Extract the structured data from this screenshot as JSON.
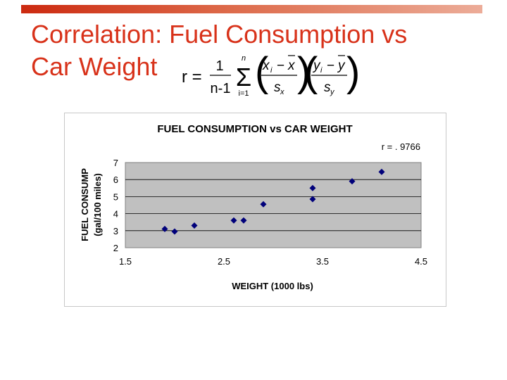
{
  "slide": {
    "title_line1": "Correlation: Fuel Consumption vs",
    "title_line2": "Car Weight",
    "accent_color": "#d8321a"
  },
  "formula": {
    "lhs": "r =",
    "fraction_numerator": "1",
    "fraction_denominator": "n-1",
    "sum_upper": "n",
    "sum_lower": "i=1",
    "x_term": "x",
    "x_subscript": "i",
    "x_mean": "x",
    "x_sd": "s",
    "x_sd_subscript": "x",
    "y_term": "y",
    "y_subscript": "i",
    "y_mean": "y",
    "y_sd": "s",
    "y_sd_subscript": "y",
    "minus": "−"
  },
  "chart_data": {
    "type": "scatter",
    "title": "FUEL CONSUMPTION vs CAR WEIGHT",
    "annotation": "r = . 9766",
    "xlabel": "WEIGHT (1000 lbs)",
    "ylabel_line1": "FUEL CONSUMP",
    "ylabel_line2": "(gal/100 miles)",
    "xlim": [
      1.5,
      4.5
    ],
    "ylim": [
      2,
      7
    ],
    "xticks": [
      "1.5",
      "2.5",
      "3.5",
      "4.5"
    ],
    "yticks": [
      "2",
      "3",
      "4",
      "5",
      "6",
      "7"
    ],
    "grid": true,
    "plot_background": "#c0c0c0",
    "marker_color": "#00007a",
    "points": [
      {
        "x": 1.9,
        "y": 3.1
      },
      {
        "x": 2.0,
        "y": 2.95
      },
      {
        "x": 2.2,
        "y": 3.3
      },
      {
        "x": 2.6,
        "y": 3.6
      },
      {
        "x": 2.7,
        "y": 3.6
      },
      {
        "x": 2.9,
        "y": 4.55
      },
      {
        "x": 3.4,
        "y": 5.5
      },
      {
        "x": 3.4,
        "y": 4.85
      },
      {
        "x": 3.8,
        "y": 5.9
      },
      {
        "x": 4.1,
        "y": 6.45
      }
    ]
  }
}
